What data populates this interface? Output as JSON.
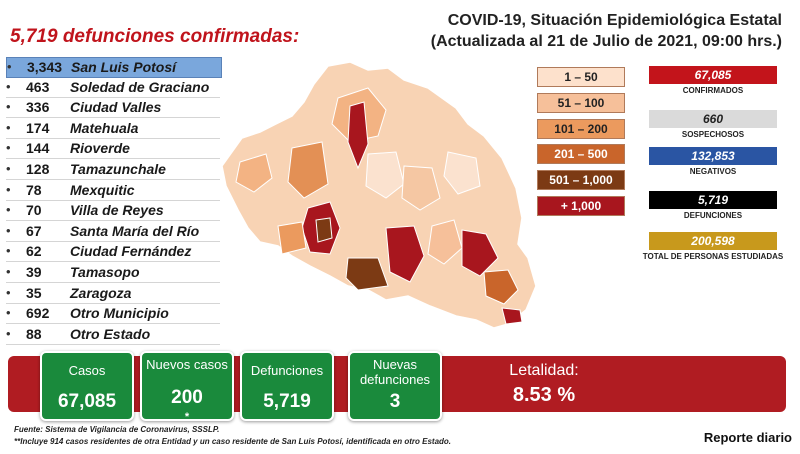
{
  "header": {
    "deaths_title": "5,719 defunciones confirmadas:",
    "main_title": "COVID-19, Situación Epidemiológica Estatal",
    "subtitle": "(Actualizada al 21 de Julio de 2021, 09:00 hrs.)"
  },
  "chart_data": {
    "type": "table",
    "title": "5,719 defunciones confirmadas:",
    "categories": [
      "San Luis Potosí",
      "Soledad de Graciano",
      "Ciudad Valles",
      "Matehuala",
      "Rioverde",
      "Tamazunchale",
      "Mexquitic",
      "Villa de Reyes",
      "Santa María del Río",
      "Ciudad Fernández",
      "Tamasopo",
      "Zaragoza",
      "Otro Municipio",
      "Otro Estado"
    ],
    "values": [
      3343,
      463,
      336,
      174,
      144,
      128,
      78,
      70,
      67,
      62,
      39,
      35,
      692,
      88
    ],
    "value_labels": [
      "3,343",
      "463",
      "336",
      "174",
      "144",
      "128",
      "78",
      "70",
      "67",
      "62",
      "39",
      "35",
      "692",
      "88"
    ],
    "map_legend": [
      {
        "label": "1 – 50",
        "color": "#fde1cc"
      },
      {
        "label": "51 – 100",
        "color": "#f6c09a"
      },
      {
        "label": "101 – 200",
        "color": "#eb9a5e"
      },
      {
        "label": "201 – 500",
        "color": "#c9652b"
      },
      {
        "label": "501 – 1,000",
        "color": "#7c3a14"
      },
      {
        "label": "+ 1,000",
        "color": "#a8161e"
      }
    ]
  },
  "stats": [
    {
      "value": "67,085",
      "label": "CONFIRMADOS",
      "bg": "#c3141b",
      "fg": "#ffffff"
    },
    {
      "value": "660",
      "label": "SOSPECHOSOS",
      "bg": "#dadada",
      "fg": "#222222"
    },
    {
      "value": "132,853",
      "label": "NEGATIVOS",
      "bg": "#2a55a3",
      "fg": "#ffffff"
    },
    {
      "value": "5,719",
      "label": "DEFUNCIONES",
      "bg": "#000000",
      "fg": "#ffffff"
    },
    {
      "value": "200,598",
      "label": "TOTAL DE PERSONAS ESTUDIADAS",
      "bg": "#c8991c",
      "fg": "#ffffff"
    }
  ],
  "summary": {
    "boxes": [
      {
        "label": "Casos",
        "value": "67,085"
      },
      {
        "label": "Nuevos casos",
        "value": "200",
        "mark": "*"
      },
      {
        "label": "Defunciones",
        "value": "5,719"
      },
      {
        "label": "Nuevas defunciones",
        "value": "3"
      }
    ],
    "lethality_label": "Letalidad:",
    "lethality_value": "8.53 %"
  },
  "footer": {
    "source": "Fuente: Sistema de Vigilancia de Coronavirus, SSSLP.",
    "note": "**Incluye 914 casos residentes de otra Entidad y un caso residente de San Luis Potosí, identificada en otro Estado.",
    "report": "Reporte diario"
  },
  "colors": {
    "accent": "#c0141c",
    "green": "#1a8a3c",
    "banner": "#b01c22"
  }
}
